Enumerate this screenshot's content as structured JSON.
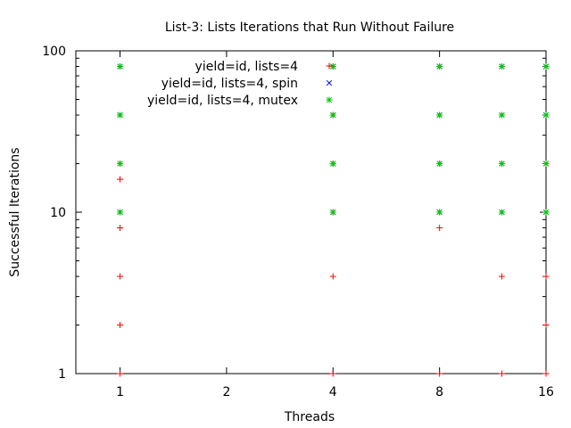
{
  "chart_data": {
    "type": "scatter",
    "title": "List-3: Lists Iterations that Run Without Failure",
    "xlabel": "Threads",
    "ylabel": "Successful Iterations",
    "x_ticks": [
      {
        "value": 1,
        "label": "1"
      },
      {
        "value": 2,
        "label": "2"
      },
      {
        "value": 4,
        "label": "4"
      },
      {
        "value": 8,
        "label": "8"
      },
      {
        "value": 16,
        "label": "16"
      }
    ],
    "y_ticks": [
      {
        "value": 1,
        "label": "1"
      },
      {
        "value": 10,
        "label": "10"
      },
      {
        "value": 100,
        "label": "100"
      }
    ],
    "xscale": "log2",
    "yscale": "log10",
    "xlim": [
      0.75,
      16
    ],
    "ylim": [
      1,
      100
    ],
    "grid": false,
    "legend_position": "top-inside",
    "series": [
      {
        "name": "yield=id, lists=4",
        "marker": "+",
        "color": "#ff0000",
        "points": [
          {
            "x": 1,
            "y": 1
          },
          {
            "x": 1,
            "y": 2
          },
          {
            "x": 1,
            "y": 4
          },
          {
            "x": 1,
            "y": 8
          },
          {
            "x": 1,
            "y": 10
          },
          {
            "x": 1,
            "y": 16
          },
          {
            "x": 1,
            "y": 20
          },
          {
            "x": 1,
            "y": 40
          },
          {
            "x": 1,
            "y": 80
          },
          {
            "x": 4,
            "y": 1
          },
          {
            "x": 4,
            "y": 4
          },
          {
            "x": 4,
            "y": 10
          },
          {
            "x": 4,
            "y": 20
          },
          {
            "x": 4,
            "y": 40
          },
          {
            "x": 4,
            "y": 80
          },
          {
            "x": 8,
            "y": 1
          },
          {
            "x": 8,
            "y": 8
          },
          {
            "x": 8,
            "y": 10
          },
          {
            "x": 8,
            "y": 20
          },
          {
            "x": 8,
            "y": 40
          },
          {
            "x": 8,
            "y": 80
          },
          {
            "x": 12,
            "y": 1
          },
          {
            "x": 12,
            "y": 4
          },
          {
            "x": 12,
            "y": 10
          },
          {
            "x": 12,
            "y": 20
          },
          {
            "x": 12,
            "y": 40
          },
          {
            "x": 12,
            "y": 80
          },
          {
            "x": 16,
            "y": 1
          },
          {
            "x": 16,
            "y": 2
          },
          {
            "x": 16,
            "y": 4
          },
          {
            "x": 16,
            "y": 10
          },
          {
            "x": 16,
            "y": 20
          },
          {
            "x": 16,
            "y": 40
          },
          {
            "x": 16,
            "y": 80
          }
        ]
      },
      {
        "name": "yield=id, lists=4, spin",
        "marker": "x",
        "color": "#0000ff",
        "points": [
          {
            "x": 1,
            "y": 10
          },
          {
            "x": 1,
            "y": 20
          },
          {
            "x": 1,
            "y": 40
          },
          {
            "x": 1,
            "y": 80
          },
          {
            "x": 4,
            "y": 10
          },
          {
            "x": 4,
            "y": 20
          },
          {
            "x": 4,
            "y": 40
          },
          {
            "x": 4,
            "y": 80
          },
          {
            "x": 8,
            "y": 10
          },
          {
            "x": 8,
            "y": 20
          },
          {
            "x": 8,
            "y": 40
          },
          {
            "x": 8,
            "y": 80
          },
          {
            "x": 12,
            "y": 10
          },
          {
            "x": 12,
            "y": 20
          },
          {
            "x": 12,
            "y": 40
          },
          {
            "x": 12,
            "y": 80
          },
          {
            "x": 16,
            "y": 10
          },
          {
            "x": 16,
            "y": 20
          },
          {
            "x": 16,
            "y": 40
          },
          {
            "x": 16,
            "y": 80
          }
        ]
      },
      {
        "name": "yield=id, lists=4, mutex",
        "marker": "*",
        "color": "#00cc00",
        "points": [
          {
            "x": 1,
            "y": 10
          },
          {
            "x": 1,
            "y": 20
          },
          {
            "x": 1,
            "y": 40
          },
          {
            "x": 1,
            "y": 80
          },
          {
            "x": 4,
            "y": 10
          },
          {
            "x": 4,
            "y": 20
          },
          {
            "x": 4,
            "y": 40
          },
          {
            "x": 4,
            "y": 80
          },
          {
            "x": 8,
            "y": 10
          },
          {
            "x": 8,
            "y": 20
          },
          {
            "x": 8,
            "y": 40
          },
          {
            "x": 8,
            "y": 80
          },
          {
            "x": 12,
            "y": 10
          },
          {
            "x": 12,
            "y": 20
          },
          {
            "x": 12,
            "y": 40
          },
          {
            "x": 12,
            "y": 80
          },
          {
            "x": 16,
            "y": 10
          },
          {
            "x": 16,
            "y": 20
          },
          {
            "x": 16,
            "y": 40
          },
          {
            "x": 16,
            "y": 80
          }
        ]
      }
    ]
  }
}
